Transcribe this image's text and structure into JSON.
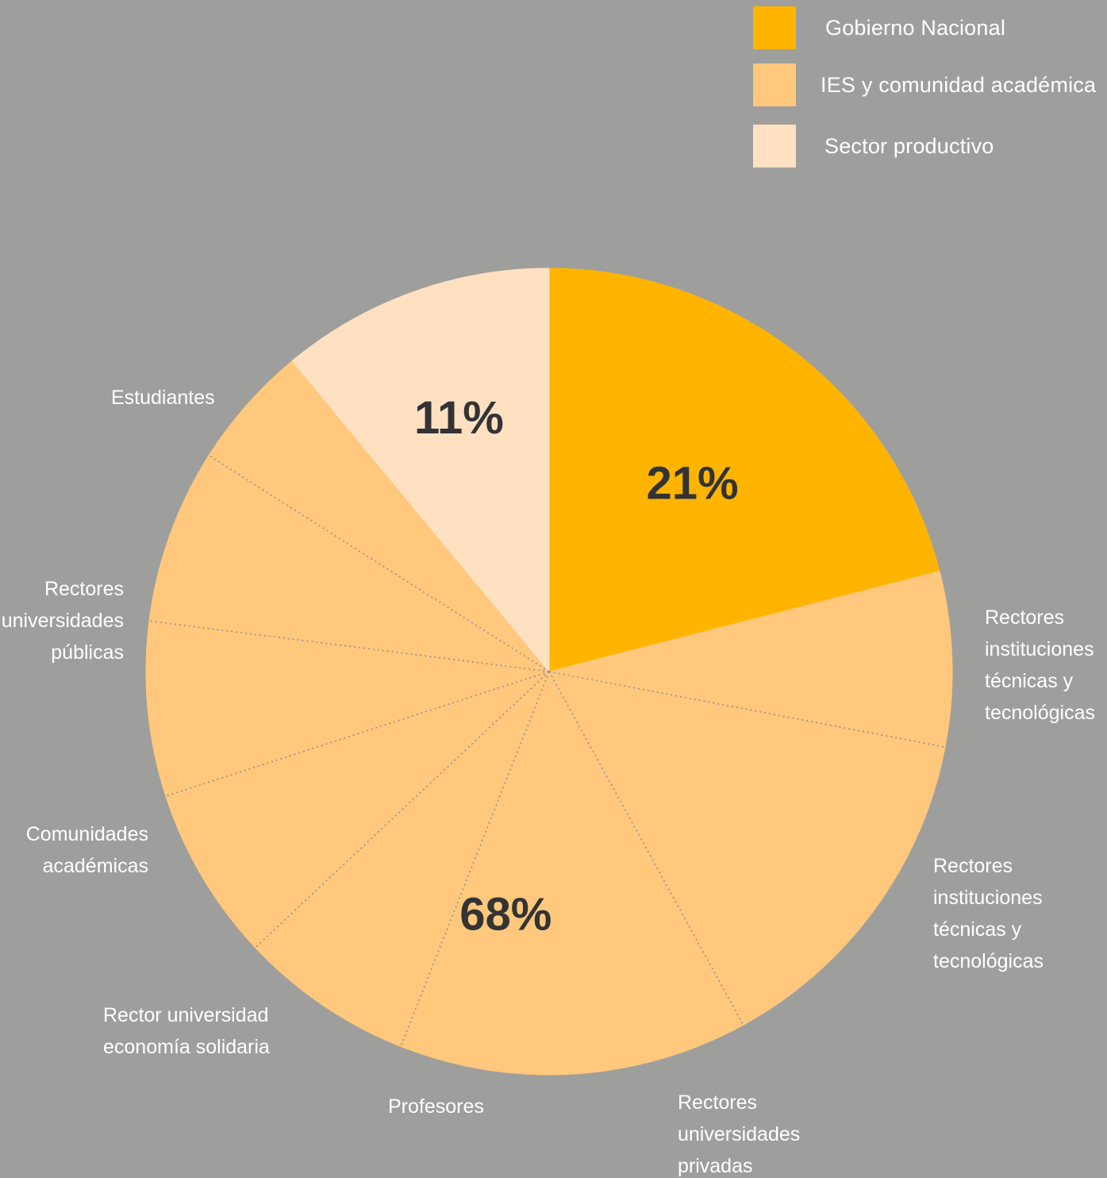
{
  "chart_data": {
    "type": "pie",
    "legend_position": "top-right",
    "groups": [
      {
        "name": "Gobierno Nacional",
        "value": 21,
        "color": "#ffb400",
        "value_label": "21%"
      },
      {
        "name": "IES y comunidad académica",
        "value": 68,
        "color": "#ffc87c",
        "value_label": "68%"
      },
      {
        "name": "Sector productivo",
        "value": 11,
        "color": "#ffe1c2",
        "value_label": "11%"
      }
    ],
    "slices": [
      {
        "group": "Gobierno Nacional",
        "value": 21,
        "label": ""
      },
      {
        "group": "IES y comunidad académica",
        "value": 7,
        "label": "Rectores instituciones técnicas y tecnológicas"
      },
      {
        "group": "IES y comunidad académica",
        "value": 14,
        "label": "Rectores instituciones técnicas y tecnológicas"
      },
      {
        "group": "IES y comunidad académica",
        "value": 14,
        "label": "Rectores universidades privadas"
      },
      {
        "group": "IES y comunidad académica",
        "value": 7,
        "label": "Profesores"
      },
      {
        "group": "IES y comunidad académica",
        "value": 7,
        "label": "Rector universidad economía solidaria"
      },
      {
        "group": "IES y comunidad académica",
        "value": 7,
        "label": "Comunidades académicas"
      },
      {
        "group": "IES y comunidad académica",
        "value": 7,
        "label": "Rectores universidades públicas"
      },
      {
        "group": "IES y comunidad académica",
        "value": 5,
        "label": "Estudiantes"
      },
      {
        "group": "Sector productivo",
        "value": 11,
        "label": ""
      }
    ]
  },
  "legend": {
    "items": [
      {
        "label": "Gobierno Nacional",
        "color": "#ffb400"
      },
      {
        "label": "IES y comunidad académica",
        "color": "#ffc87c"
      },
      {
        "label": "Sector productivo",
        "color": "#ffe1c2"
      }
    ]
  },
  "category_labels": {
    "rectores_tecnicas_1": [
      "Rectores",
      "instituciones",
      "técnicas y",
      "tecnológicas"
    ],
    "rectores_tecnicas_2": [
      "Rectores",
      "instituciones",
      "técnicas y",
      "tecnológicas"
    ],
    "rectores_privadas": [
      "Rectores",
      "universidades",
      "privadas"
    ],
    "profesores": [
      "Profesores"
    ],
    "rector_economia": [
      "Rector universidad",
      "economía solidaria"
    ],
    "comunidades": [
      "Comunidades",
      "académicas"
    ],
    "rectores_publicas": [
      "Rectores",
      "universidades",
      "públicas"
    ],
    "estudiantes": [
      "Estudiantes"
    ]
  }
}
